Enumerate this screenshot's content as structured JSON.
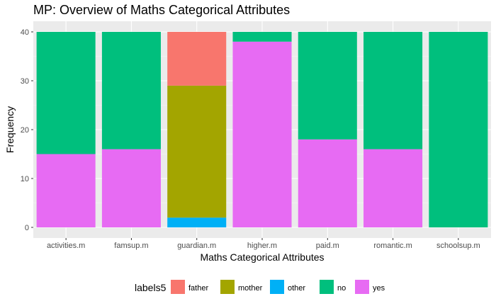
{
  "chart_data": {
    "type": "bar",
    "stacked": true,
    "title": "MP: Overview of Maths Categorical Attributes",
    "xlabel": "Maths Categorical Attributes",
    "ylabel": "Frequency",
    "ylim": [
      0,
      40
    ],
    "yticks": [
      0,
      10,
      20,
      30,
      40
    ],
    "grid": true,
    "legend": {
      "title": "labels5",
      "position": "bottom"
    },
    "categories": [
      "activities.m",
      "famsup.m",
      "guardian.m",
      "higher.m",
      "paid.m",
      "romantic.m",
      "schoolsup.m"
    ],
    "series": [
      {
        "name": "father",
        "color": "#F8766D",
        "values": [
          0,
          0,
          11,
          0,
          0,
          0,
          0
        ]
      },
      {
        "name": "mother",
        "color": "#A3A500",
        "values": [
          0,
          0,
          27,
          0,
          0,
          0,
          0
        ]
      },
      {
        "name": "other",
        "color": "#00B0F6",
        "values": [
          0,
          0,
          2,
          0,
          0,
          0,
          0
        ]
      },
      {
        "name": "no",
        "color": "#00BF7D",
        "values": [
          25,
          24,
          0,
          2,
          22,
          24,
          40
        ]
      },
      {
        "name": "yes",
        "color": "#E76BF3",
        "values": [
          15,
          16,
          0,
          38,
          18,
          16,
          0
        ]
      }
    ]
  }
}
